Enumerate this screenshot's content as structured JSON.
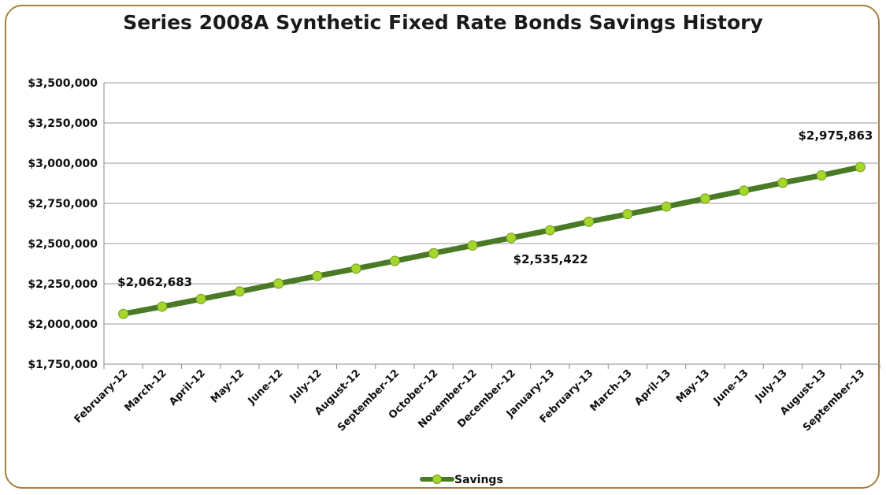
{
  "chart_data": {
    "type": "line",
    "title": "Series 2008A Synthetic Fixed Rate Bonds Savings History",
    "xlabel": "",
    "ylabel": "",
    "categories": [
      "February-12",
      "March-12",
      "April-12",
      "May-12",
      "June-12",
      "July-12",
      "August-12",
      "September-12",
      "October-12",
      "November-12",
      "December-12",
      "January-13",
      "February-13",
      "March-13",
      "April-13",
      "May-13",
      "June-13",
      "July-13",
      "August-13",
      "September-13"
    ],
    "y_ticks": [
      "$1,750,000",
      "$2,000,000",
      "$2,250,000",
      "$2,500,000",
      "$2,750,000",
      "$3,000,000",
      "$3,250,000",
      "$3,500,000"
    ],
    "ylim": [
      1750000,
      3500000
    ],
    "grid": true,
    "legend_position": "bottom",
    "series": [
      {
        "name": "Savings",
        "color": "#4a7a25",
        "marker_color": "#a6d62c",
        "values": [
          2062683,
          2108000,
          2155000,
          2202000,
          2251000,
          2298000,
          2344000,
          2392000,
          2440000,
          2488000,
          2535422,
          2583000,
          2636000,
          2683000,
          2730000,
          2780000,
          2829000,
          2878000,
          2924000,
          2975863
        ]
      }
    ],
    "data_labels": [
      {
        "index": 0,
        "text": "$2,062,683",
        "placement": "above"
      },
      {
        "index": 10,
        "text": "$2,535,422",
        "placement": "below"
      },
      {
        "index": 19,
        "text": "$2,975,863",
        "placement": "above"
      }
    ]
  }
}
